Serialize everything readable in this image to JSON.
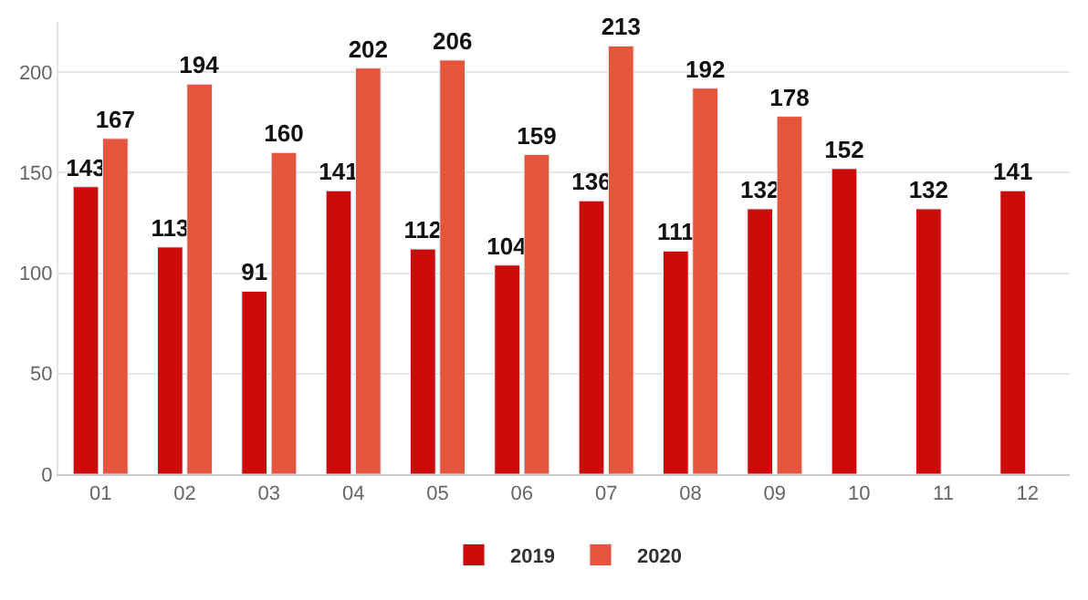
{
  "chart_data": {
    "type": "bar",
    "categories": [
      "01",
      "02",
      "03",
      "04",
      "05",
      "06",
      "07",
      "08",
      "09",
      "10",
      "11",
      "12"
    ],
    "series": [
      {
        "name": "2019",
        "color": "#cc0a0a",
        "values": [
          143,
          113,
          91,
          141,
          112,
          104,
          136,
          111,
          132,
          152,
          132,
          141
        ]
      },
      {
        "name": "2020",
        "color": "#e5553b",
        "values": [
          167,
          194,
          160,
          202,
          206,
          159,
          213,
          192,
          178,
          null,
          null,
          null
        ]
      }
    ],
    "ylim": [
      0,
      225
    ],
    "yticks": [
      0,
      50,
      100,
      150,
      200
    ],
    "grid": "y",
    "legend": "bottom",
    "data_labels": true
  }
}
